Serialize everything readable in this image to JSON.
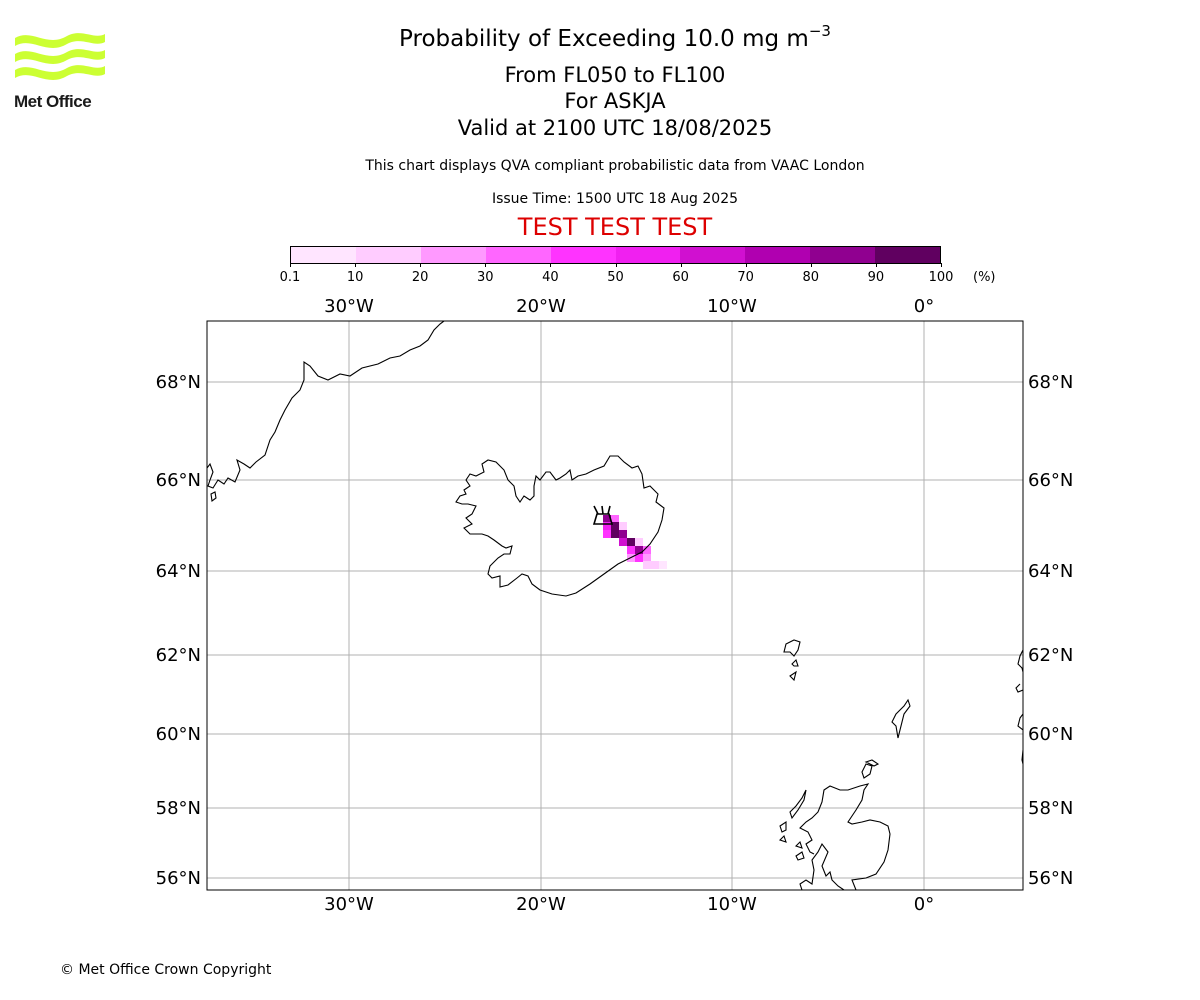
{
  "brand": {
    "name": "Met Office",
    "logo_color": "#ccff33"
  },
  "header": {
    "title_main": "Probability of Exceeding 10.0 mg m",
    "title_exp": "−3",
    "line1": "From FL050 to FL100",
    "line2": "For ASKJA",
    "line3": "Valid at 2100 UTC 18/08/2025",
    "info": "This chart displays QVA compliant probabilistic data from VAAC London",
    "issue": "Issue Time: 1500 UTC 18 Aug 2025",
    "test_banner": "TEST TEST TEST",
    "test_color": "#dd0000"
  },
  "colorbar": {
    "labels": [
      "0.1",
      "10",
      "20",
      "30",
      "40",
      "50",
      "60",
      "70",
      "80",
      "90",
      "100"
    ],
    "unit": "(%)",
    "colors": [
      "#ffe5ff",
      "#ffccff",
      "#ff99ff",
      "#ff66ff",
      "#ff33ff",
      "#f020f0",
      "#d010d0",
      "#b000b0",
      "#900090",
      "#600060"
    ]
  },
  "map": {
    "lon_labels": [
      "30°W",
      "20°W",
      "10°W",
      "0°"
    ],
    "lat_labels": [
      "68°N",
      "66°N",
      "64°N",
      "62°N",
      "60°N",
      "58°N",
      "56°N"
    ],
    "volcano": "ASKJA",
    "probability_field_range_percent": [
      0.1,
      100
    ]
  },
  "footer": {
    "copyright": "© Met Office Crown Copyright"
  }
}
